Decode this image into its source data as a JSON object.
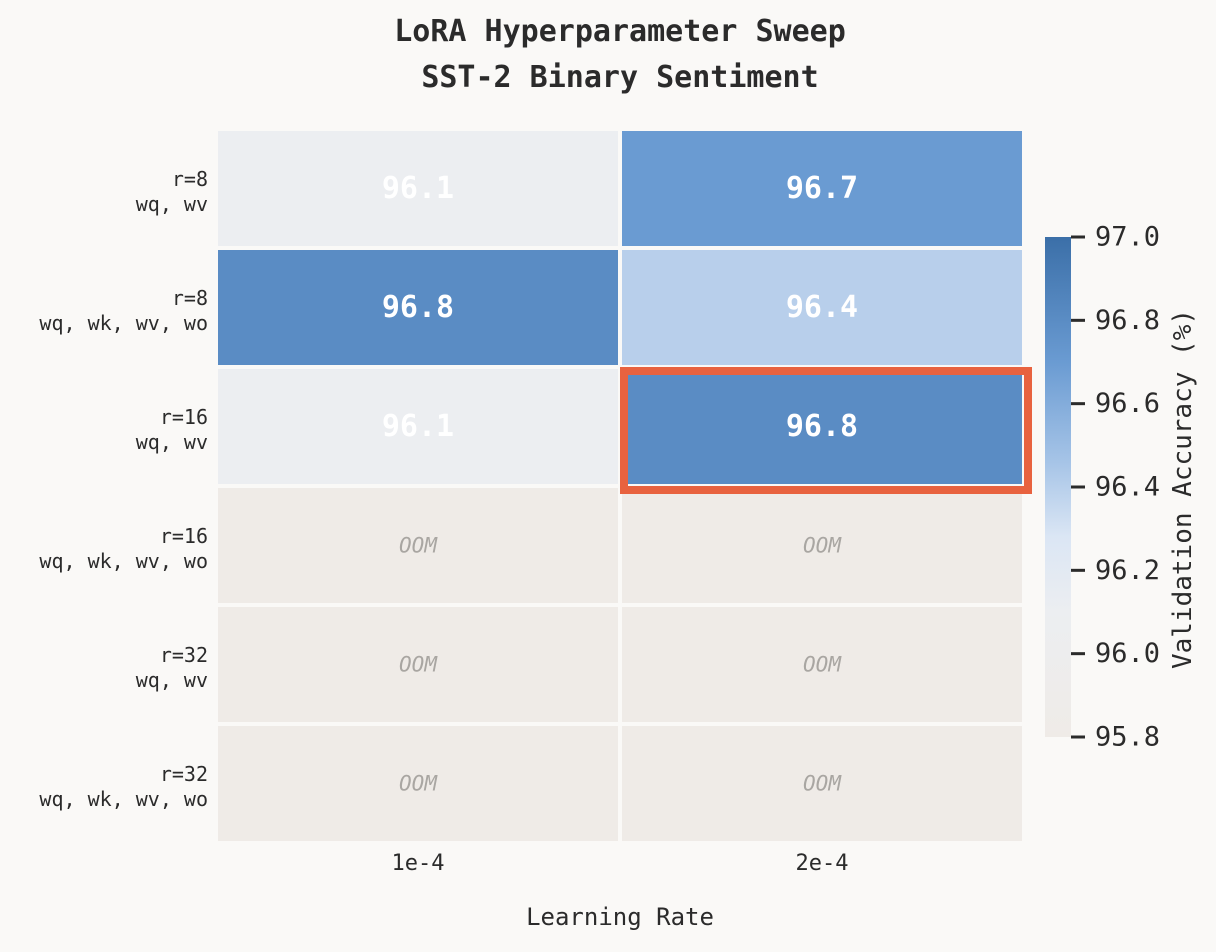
{
  "chart_data": {
    "type": "heatmap",
    "title": [
      "LoRA Hyperparameter Sweep",
      "SST-2 Binary Sentiment"
    ],
    "xlabel": "Learning Rate",
    "x_categories": [
      "1e-4",
      "2e-4"
    ],
    "y_categories": [
      [
        "r=8",
        "wq, wv"
      ],
      [
        "r=8",
        "wq, wk, wv, wo"
      ],
      [
        "r=16",
        "wq, wv"
      ],
      [
        "r=16",
        "wq, wk, wv, wo"
      ],
      [
        "r=32",
        "wq, wv"
      ],
      [
        "r=32",
        "wq, wk, wv, wo"
      ]
    ],
    "values": [
      [
        96.1,
        96.7
      ],
      [
        96.8,
        96.4
      ],
      [
        96.1,
        96.8
      ],
      [
        null,
        null
      ],
      [
        null,
        null
      ],
      [
        null,
        null
      ]
    ],
    "cell_labels": [
      [
        "96.1",
        "96.7"
      ],
      [
        "96.8",
        "96.4"
      ],
      [
        "96.1",
        "96.8"
      ],
      [
        "OOM",
        "OOM"
      ],
      [
        "OOM",
        "OOM"
      ],
      [
        "OOM",
        "OOM"
      ]
    ],
    "missing_label": "OOM",
    "highlight": {
      "row": 2,
      "col": 1
    },
    "colorbar": {
      "label": "Validation Accuracy (%)",
      "range": [
        95.8,
        97.0
      ],
      "ticks": [
        "95.8",
        "96.0",
        "96.2",
        "96.4",
        "96.6",
        "96.8",
        "97.0"
      ]
    },
    "colors": {
      "low": "#efebe7",
      "mid": "#dfe8f4",
      "high": "#3b6fa8",
      "missing": "#efebe7",
      "highlight": "#e8623f",
      "background": "#faf9f7"
    }
  }
}
